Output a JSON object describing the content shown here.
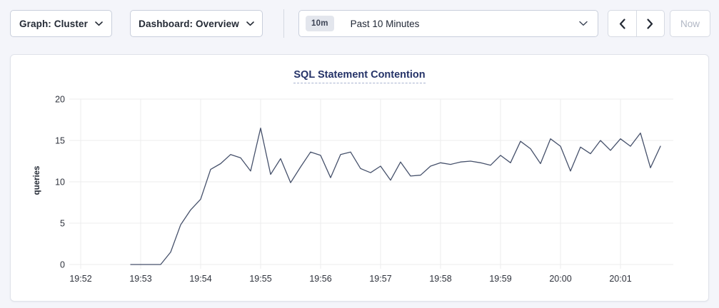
{
  "colors": {
    "line": "#46516b",
    "grid": "#ececee",
    "title": "#253368",
    "page_bg": "#f4f5fa"
  },
  "toolbar": {
    "graph_dropdown_label": "Graph: Cluster",
    "dashboard_dropdown_label": "Dashboard: Overview",
    "time_badge": "10m",
    "time_label": "Past 10 Minutes",
    "now_label": "Now"
  },
  "chart_data": {
    "type": "line",
    "title": "SQL Statement Contention",
    "xlabel": "",
    "ylabel": "queries",
    "ylim": [
      0,
      20
    ],
    "y_ticks": [
      0,
      5,
      10,
      15,
      20
    ],
    "x_ticks": [
      "19:52",
      "19:53",
      "19:54",
      "19:55",
      "19:56",
      "19:57",
      "19:58",
      "19:59",
      "20:00",
      "20:01"
    ],
    "grid": true,
    "legend": "none",
    "x": [
      "19:52:50",
      "19:53:00",
      "19:53:10",
      "19:53:20",
      "19:53:30",
      "19:53:40",
      "19:53:50",
      "19:54:00",
      "19:54:10",
      "19:54:20",
      "19:54:30",
      "19:54:40",
      "19:54:50",
      "19:55:00",
      "19:55:10",
      "19:55:20",
      "19:55:30",
      "19:55:40",
      "19:55:50",
      "19:56:00",
      "19:56:10",
      "19:56:20",
      "19:56:30",
      "19:56:40",
      "19:56:50",
      "19:57:00",
      "19:57:10",
      "19:57:20",
      "19:57:30",
      "19:57:40",
      "19:57:50",
      "19:58:00",
      "19:58:10",
      "19:58:20",
      "19:58:30",
      "19:58:40",
      "19:58:50",
      "19:59:00",
      "19:59:10",
      "19:59:20",
      "19:59:30",
      "19:59:40",
      "19:59:50",
      "20:00:00",
      "20:00:10",
      "20:00:20",
      "20:00:30",
      "20:00:40",
      "20:00:50",
      "20:01:00",
      "20:01:10",
      "20:01:20",
      "20:01:30",
      "20:01:40"
    ],
    "series": [
      {
        "name": "SQL Statement Contention",
        "values": [
          0,
          0,
          0,
          0,
          1.5,
          4.8,
          6.6,
          7.9,
          11.5,
          12.2,
          13.3,
          12.9,
          11.3,
          16.5,
          10.9,
          12.8,
          9.9,
          11.8,
          13.6,
          13.2,
          10.5,
          13.3,
          13.6,
          11.6,
          11.1,
          11.9,
          10.2,
          12.4,
          10.7,
          10.8,
          11.9,
          12.3,
          12.1,
          12.4,
          12.5,
          12.3,
          12.0,
          13.2,
          12.3,
          14.9,
          14.0,
          12.2,
          15.2,
          14.3,
          11.3,
          14.2,
          13.4,
          15.0,
          13.8,
          15.2,
          14.3,
          15.9,
          11.7,
          14.3
        ]
      }
    ]
  }
}
